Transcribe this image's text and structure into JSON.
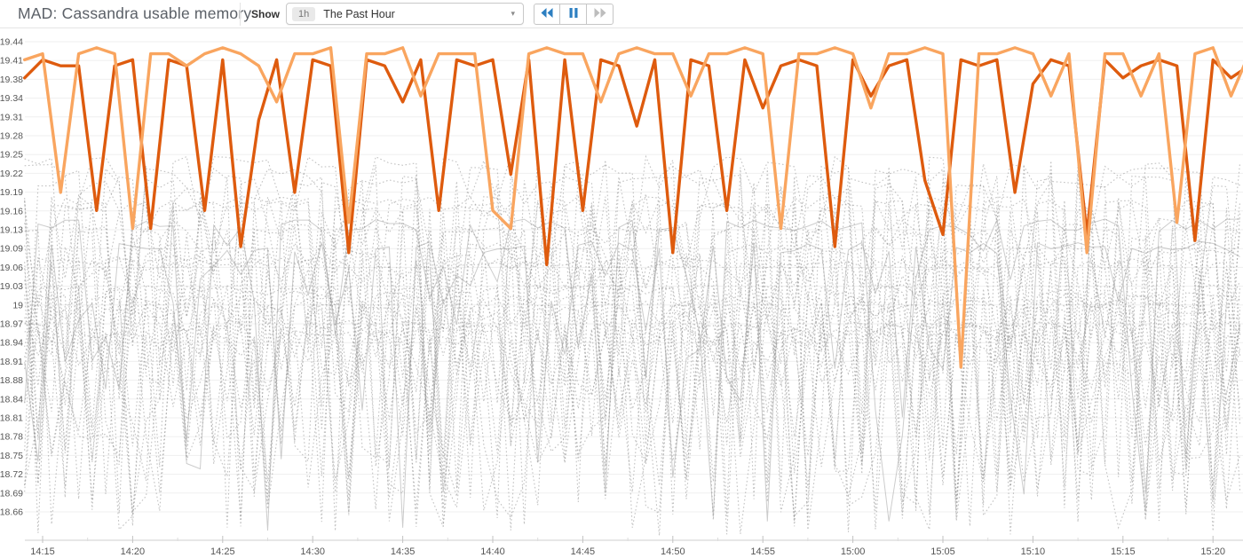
{
  "header": {
    "title": "MAD: Cassandra usable memory",
    "show_label": "Show",
    "range_badge": "1h",
    "range_value": "The Past Hour",
    "icons": {
      "dropdown_caret": "▼",
      "rewind": "rewind-double-left-triangles",
      "pause": "pause-two-bars",
      "fast_forward": "fast-forward-double-right-triangles"
    },
    "control_colors": {
      "active": "#2d7fc1",
      "disabled": "#bdbdbd"
    }
  },
  "chart_data": {
    "type": "line",
    "title": "MAD: Cassandra usable memory",
    "xlabel": "",
    "ylabel": "",
    "legend": "none",
    "grid": true,
    "ylim": [
      18.63,
      19.455
    ],
    "y_tick_labels": [
      "19.44",
      "19.41",
      "19.38",
      "19.34",
      "19.31",
      "19.28",
      "19.25",
      "19.22",
      "19.19",
      "19.16",
      "19.13",
      "19.09",
      "19.06",
      "19.03",
      "19",
      "18.97",
      "18.94",
      "18.91",
      "18.88",
      "18.84",
      "18.81",
      "18.78",
      "18.75",
      "18.72",
      "18.69",
      "18.66"
    ],
    "x_tick_labels": [
      "14:15",
      "14:20",
      "14:25",
      "14:30",
      "14:35",
      "14:40",
      "14:45",
      "14:50",
      "14:55",
      "15:00",
      "15:05",
      "15:10",
      "15:15",
      "15:20"
    ],
    "x_start_time": "14:14",
    "x_end_time": "15:21",
    "sample_interval_minutes": 1,
    "series": [
      {
        "name": "anomaly-band-upper-dark-orange",
        "color": "#de5b0e",
        "width": 3.4,
        "values": [
          19.38,
          19.41,
          19.4,
          19.4,
          19.16,
          19.4,
          19.41,
          19.13,
          19.41,
          19.4,
          19.16,
          19.41,
          19.1,
          19.31,
          19.41,
          19.19,
          19.41,
          19.4,
          19.09,
          19.41,
          19.4,
          19.34,
          19.41,
          19.16,
          19.41,
          19.4,
          19.41,
          19.22,
          19.41,
          19.07,
          19.41,
          19.16,
          19.41,
          19.4,
          19.3,
          19.41,
          19.09,
          19.41,
          19.4,
          19.16,
          19.41,
          19.33,
          19.4,
          19.41,
          19.4,
          19.1,
          19.41,
          19.35,
          19.4,
          19.41,
          19.21,
          19.12,
          19.41,
          19.4,
          19.41,
          19.19,
          19.37,
          19.41,
          19.4,
          19.12,
          19.41,
          19.38,
          19.4,
          19.41,
          19.4,
          19.11,
          19.41,
          19.38,
          19.4
        ]
      },
      {
        "name": "anomaly-band-lower-light-orange",
        "color": "#f9a55f",
        "width": 3.4,
        "values": [
          19.41,
          19.42,
          19.19,
          19.42,
          19.43,
          19.42,
          19.13,
          19.42,
          19.42,
          19.4,
          19.42,
          19.43,
          19.42,
          19.4,
          19.34,
          19.42,
          19.42,
          19.43,
          19.14,
          19.42,
          19.42,
          19.43,
          19.35,
          19.42,
          19.42,
          19.42,
          19.16,
          19.13,
          19.42,
          19.43,
          19.42,
          19.42,
          19.34,
          19.42,
          19.43,
          19.42,
          19.42,
          19.35,
          19.42,
          19.42,
          19.43,
          19.42,
          19.13,
          19.42,
          19.42,
          19.43,
          19.42,
          19.33,
          19.42,
          19.42,
          19.43,
          19.42,
          18.9,
          19.42,
          19.42,
          19.43,
          19.42,
          19.35,
          19.42,
          19.09,
          19.42,
          19.42,
          19.35,
          19.42,
          19.14,
          19.42,
          19.43,
          19.35,
          19.42
        ]
      }
    ],
    "background_series": {
      "description": "dense cluster of per-host dotted gray lines oscillating between plateaus and drops",
      "count": 26,
      "color": "#8f8f8f",
      "style": "dotted",
      "opacity": 0.55,
      "min": 18.62,
      "base_range": [
        18.95,
        19.26
      ],
      "seed": 11
    },
    "colors": {
      "gridline": "#efefef",
      "axis_line": "#cfcfcf",
      "tick": "#c2c2c2",
      "y_label": "#555555",
      "x_label": "#555555"
    }
  }
}
